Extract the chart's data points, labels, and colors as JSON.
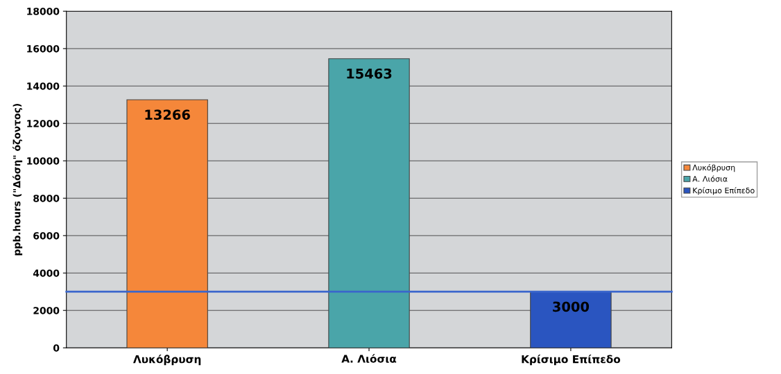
{
  "chart_data": {
    "type": "bar",
    "ylabel": "ppb.hours (\"Δόση\" όζοντος)",
    "categories": [
      "Λυκόβρυση",
      "Α. Λιόσια",
      "Κρίσιμο Επίπεδο"
    ],
    "series": [
      {
        "name": "Λυκόβρυση",
        "color": "#f5873a",
        "values": [
          13266,
          null,
          null
        ]
      },
      {
        "name": "Α. Λιόσια",
        "color": "#4aa5a9",
        "values": [
          null,
          15463,
          null
        ]
      },
      {
        "name": "Κρίσιμο Επίπεδο",
        "color": "#2a55c0",
        "values": [
          null,
          null,
          3000
        ]
      }
    ],
    "data_labels": true,
    "ref_lines": [
      {
        "axis": "y",
        "value": 3000,
        "color": "#3a66cc"
      }
    ],
    "ylim": [
      0,
      18000
    ],
    "yticks": [
      0,
      2000,
      4000,
      6000,
      8000,
      10000,
      12000,
      14000,
      16000,
      18000
    ],
    "grid": "y",
    "legend": "right"
  }
}
